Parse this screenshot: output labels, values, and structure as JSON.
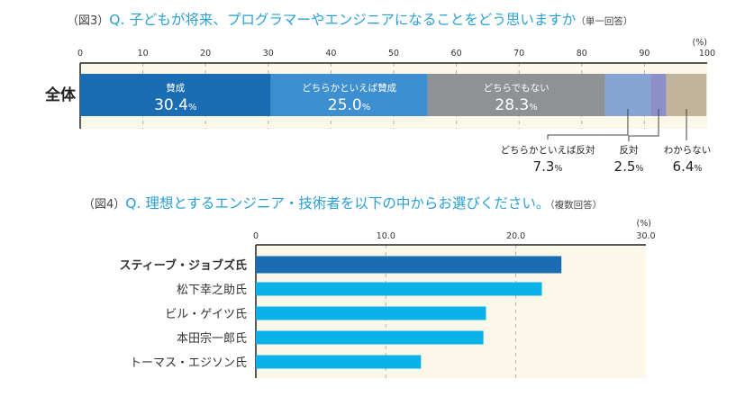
{
  "figure3": {
    "fig_label": "（図3）",
    "question": "Q. 子どもが将来、プログラマーやエンジニアになることをどう思いますか",
    "note": "（単一回答）"
  },
  "figure4": {
    "fig_label": "（図4）",
    "question": "Q. 理想とするエンジニア・技術者を以下の中からお選びください。",
    "note": "（複数回答）"
  },
  "colors": {
    "title_blue": "#2a9fd6",
    "plot_bg": "#fbf8e9",
    "highlight_bar": "#1a6db3",
    "bar": "#0bb2ea",
    "highlight_label": "#1a6db3"
  },
  "chart_data": [
    {
      "type": "bar",
      "stacked": true,
      "orientation": "horizontal",
      "title": "Q. 子どもが将来、プログラマーやエンジニアになることをどう思いますか",
      "categories": [
        "全体"
      ],
      "unit_label": "(%)",
      "xlim": [
        0,
        100
      ],
      "ticks": [
        "0",
        "10",
        "20",
        "30",
        "40",
        "50",
        "60",
        "70",
        "80",
        "90",
        "100"
      ],
      "series": [
        {
          "name": "賛成",
          "values": [
            30.4
          ],
          "label": "30.4",
          "color": "#1a6db3",
          "label_position": "inside"
        },
        {
          "name": "どちらかといえば賛成",
          "values": [
            25.0
          ],
          "label": "25.0",
          "color": "#3d8fd1",
          "label_position": "inside"
        },
        {
          "name": "どちらでもない",
          "values": [
            28.3
          ],
          "label": "28.3",
          "color": "#8f9295",
          "label_position": "inside"
        },
        {
          "name": "どちらかといえば反対",
          "values": [
            7.3
          ],
          "label": "7.3",
          "color": "#87a3d4",
          "label_position": "below"
        },
        {
          "name": "反対",
          "values": [
            2.5
          ],
          "label": "2.5",
          "color": "#8c8fc8",
          "label_position": "below"
        },
        {
          "name": "わからない",
          "values": [
            6.4
          ],
          "label": "6.4",
          "color": "#c4b39b",
          "label_position": "below"
        }
      ],
      "percent_suffix": "%",
      "grid": true
    },
    {
      "type": "bar",
      "orientation": "horizontal",
      "title": "Q. 理想とするエンジニア・技術者を以下の中からお選びください。",
      "categories": [
        "スティーブ・ジョブズ氏",
        "松下幸之助氏",
        "ビル・ゲイツ氏",
        "本田宗一郎氏",
        "トーマス・エジソン氏"
      ],
      "values": [
        23.5,
        22.0,
        17.7,
        17.5,
        12.7
      ],
      "highlight_index": 0,
      "unit_label": "(%)",
      "xlim": [
        0,
        30
      ],
      "ticks": [
        "0",
        "10.0",
        "20.0",
        "30.0"
      ],
      "grid": true
    }
  ]
}
